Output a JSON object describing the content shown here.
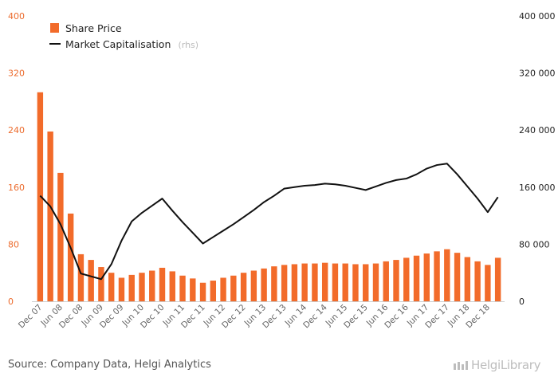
{
  "chart_data": {
    "type": "bar+line",
    "legend": {
      "bar_label": "Share Price",
      "line_label": "Market Capitalisation",
      "line_suffix": "(rhs)"
    },
    "left_axis": {
      "ticks": [
        "0",
        "80",
        "160",
        "240",
        "320",
        "400"
      ],
      "ylim": [
        0,
        400
      ]
    },
    "right_axis": {
      "ticks": [
        "0",
        "80 000",
        "160 000",
        "240 000",
        "320 000",
        "400 000"
      ],
      "ylim": [
        0,
        400000
      ]
    },
    "x_tick_labels": [
      "Dec 07",
      "Jun 08",
      "Dec 08",
      "Jun 09",
      "Dec 09",
      "Jun 10",
      "Dec 10",
      "Jun 11",
      "Dec 11",
      "Jun 12",
      "Dec 12",
      "Jun 13",
      "Dec 13",
      "Jun 14",
      "Dec 14",
      "Jun 15",
      "Dec 15",
      "Jun 16",
      "Dec 16",
      "Jun 17",
      "Dec 17",
      "Jun 18",
      "Dec 18"
    ],
    "categories": [
      "Dec 07",
      "Mar 08",
      "Jun 08",
      "Sep 08",
      "Dec 08",
      "Mar 09",
      "Jun 09",
      "Sep 09",
      "Dec 09",
      "Mar 10",
      "Jun 10",
      "Sep 10",
      "Dec 10",
      "Mar 11",
      "Jun 11",
      "Sep 11",
      "Dec 11",
      "Mar 12",
      "Jun 12",
      "Sep 12",
      "Dec 12",
      "Mar 13",
      "Jun 13",
      "Sep 13",
      "Dec 13",
      "Mar 14",
      "Jun 14",
      "Sep 14",
      "Dec 14",
      "Mar 15",
      "Jun 15",
      "Sep 15",
      "Dec 15",
      "Mar 16",
      "Jun 16",
      "Sep 16",
      "Dec 16",
      "Mar 17",
      "Jun 17",
      "Sep 17",
      "Dec 17",
      "Mar 18",
      "Jun 18",
      "Sep 18",
      "Dec 18",
      "Mar 19"
    ],
    "series": [
      {
        "name": "Share Price",
        "axis": "left",
        "kind": "bar",
        "color": "#f26b2a",
        "values": [
          293,
          238,
          180,
          123,
          66,
          58,
          48,
          40,
          33,
          37,
          40,
          43,
          47,
          42,
          36,
          32,
          26,
          29,
          33,
          36,
          40,
          43,
          46,
          49,
          51,
          52,
          53,
          53,
          54,
          53,
          53,
          52,
          52,
          53,
          56,
          58,
          61,
          64,
          67,
          70,
          73,
          68,
          62,
          56,
          51,
          61
        ]
      },
      {
        "name": "Market Capitalisation",
        "axis": "right",
        "kind": "line",
        "color": "#111111",
        "values": [
          148000,
          133000,
          108000,
          75000,
          39000,
          35000,
          31000,
          52000,
          85000,
          112000,
          124000,
          134000,
          144000,
          127000,
          111000,
          96000,
          81000,
          90000,
          99000,
          108000,
          118000,
          128000,
          139000,
          148000,
          158000,
          160000,
          162000,
          163000,
          165000,
          164000,
          162000,
          159000,
          156000,
          161000,
          166000,
          170000,
          172000,
          178000,
          186000,
          191000,
          193000,
          178000,
          161000,
          144000,
          125000,
          146000
        ]
      }
    ],
    "grid": false,
    "legend_position": "top-left"
  },
  "footer": {
    "source": "Source: Company Data, Helgi Analytics",
    "logo_text": "HelgiLibrary"
  }
}
